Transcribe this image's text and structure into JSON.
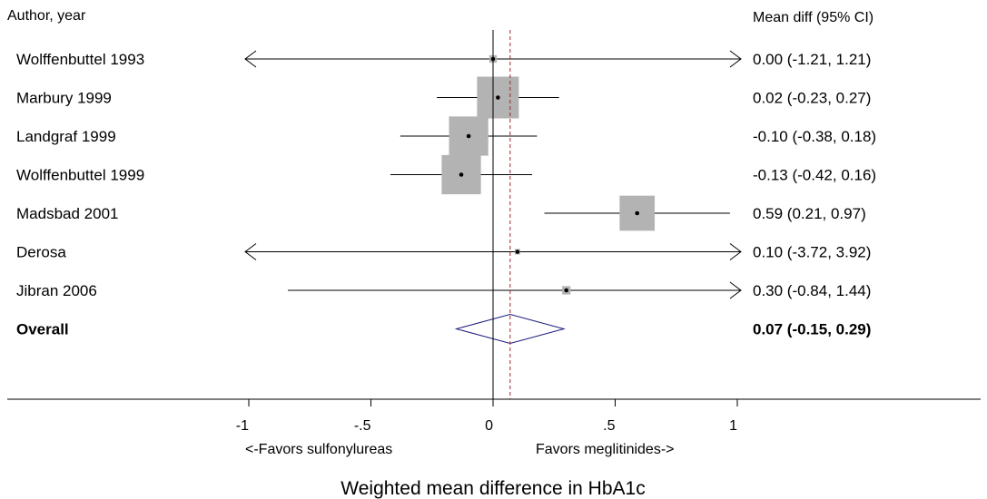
{
  "chart_data": {
    "type": "forest",
    "xlabel": "Weighted mean difference in HbA1c",
    "left_header": "Author, year",
    "right_header": "Mean diff (95% CI)",
    "xlim": [
      -1,
      1
    ],
    "xticks": [
      {
        "value": -1,
        "label": "-1"
      },
      {
        "value": -0.5,
        "label": "-.5"
      },
      {
        "value": 0,
        "label": "0"
      },
      {
        "value": 0.5,
        "label": ".5"
      },
      {
        "value": 1,
        "label": "1"
      }
    ],
    "favors_left": "<-Favors sulfonylureas",
    "favors_right": "Favors meglitinides->",
    "studies": [
      {
        "name": "Wolffenbuttel 1993",
        "estimate": 0.0,
        "lower": -1.21,
        "upper": 1.21,
        "ci_text": "0.00 (-1.21, 1.21)",
        "weight": 0.18
      },
      {
        "name": "Marbury 1999",
        "estimate": 0.02,
        "lower": -0.23,
        "upper": 0.27,
        "ci_text": "0.02 (-0.23, 0.27)",
        "weight": 1.0
      },
      {
        "name": "Landgraf 1999",
        "estimate": -0.1,
        "lower": -0.38,
        "upper": 0.18,
        "ci_text": "-0.10 (-0.38, 0.18)",
        "weight": 0.94
      },
      {
        "name": "Wolffenbuttel 1999",
        "estimate": -0.13,
        "lower": -0.42,
        "upper": 0.16,
        "ci_text": "-0.13 (-0.42, 0.16)",
        "weight": 0.94
      },
      {
        "name": "Madsbad 2001",
        "estimate": 0.59,
        "lower": 0.21,
        "upper": 0.97,
        "ci_text": "0.59 (0.21, 0.97)",
        "weight": 0.84
      },
      {
        "name": "Derosa",
        "estimate": 0.1,
        "lower": -3.72,
        "upper": 3.92,
        "ci_text": "0.10 (-3.72, 3.92)",
        "weight": 0.05
      },
      {
        "name": "Jibran 2006",
        "estimate": 0.3,
        "lower": -0.84,
        "upper": 1.44,
        "ci_text": "0.30 (-0.84, 1.44)",
        "weight": 0.2
      }
    ],
    "overall": {
      "name": "Overall",
      "estimate": 0.07,
      "lower": -0.15,
      "upper": 0.29,
      "ci_text": "0.07 (-0.15, 0.29)"
    },
    "reference_line": 0,
    "overall_line": 0.07,
    "colors": {
      "box": "#b3b3b3",
      "diamond": "#1a1a7a",
      "overall_line": "#a0282d",
      "line": "#000000"
    }
  }
}
